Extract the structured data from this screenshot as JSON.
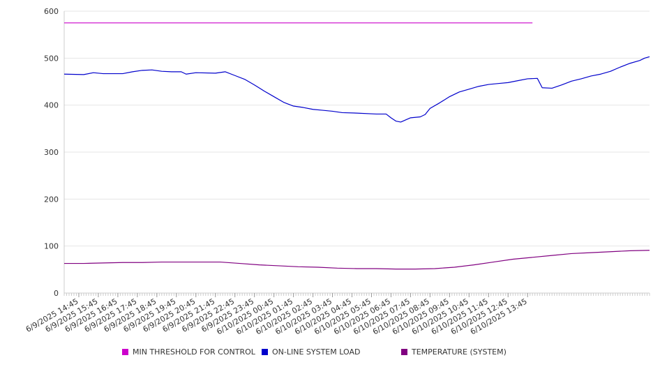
{
  "chart_data": {
    "type": "line",
    "title": "",
    "xlabel": "",
    "ylabel": "",
    "ylim": [
      0,
      600
    ],
    "yticks": [
      0,
      100,
      200,
      300,
      400,
      500,
      600
    ],
    "grid": true,
    "legend_position": "bottom",
    "x_tick_labels": [
      "6/9/2025 14:45",
      "6/9/2025 15:45",
      "6/9/2025 16:45",
      "6/9/2025 17:45",
      "6/9/2025 18:45",
      "6/9/2025 19:45",
      "6/9/2025 20:45",
      "6/9/2025 21:45",
      "6/9/2025 22:45",
      "6/9/2025 23:45",
      "6/10/2025 00:45",
      "6/10/2025 01:45",
      "6/10/2025 02:45",
      "6/10/2025 03:45",
      "6/10/2025 04:45",
      "6/10/2025 05:45",
      "6/10/2025 06:45",
      "6/10/2025 07:45",
      "6/10/2025 08:45",
      "6/10/2025 09:45",
      "6/10/2025 10:45",
      "6/10/2025 11:45",
      "6/10/2025 12:45",
      "6/10/2025 13:45"
    ],
    "series": [
      {
        "name": "MIN THRESHOLD FOR CONTROL",
        "color": "#cc00cc",
        "points": [
          [
            "6/9/2025 14:00",
            575
          ],
          [
            "6/10/2025 14:00",
            575
          ]
        ]
      },
      {
        "name": "ON-LINE SYSTEM LOAD",
        "color": "#0000cc",
        "points": [
          [
            "6/9/2025 14:00",
            466
          ],
          [
            "6/9/2025 15:00",
            465
          ],
          [
            "6/9/2025 15:30",
            469
          ],
          [
            "6/9/2025 16:00",
            467
          ],
          [
            "6/9/2025 17:00",
            467
          ],
          [
            "6/9/2025 17:30",
            471
          ],
          [
            "6/9/2025 18:00",
            474
          ],
          [
            "6/9/2025 18:30",
            475
          ],
          [
            "6/9/2025 19:00",
            472
          ],
          [
            "6/9/2025 19:30",
            471
          ],
          [
            "6/9/2025 20:00",
            471
          ],
          [
            "6/9/2025 20:15",
            466
          ],
          [
            "6/9/2025 20:45",
            469
          ],
          [
            "6/9/2025 21:45",
            468
          ],
          [
            "6/9/2025 22:15",
            471
          ],
          [
            "6/9/2025 22:45",
            463
          ],
          [
            "6/9/2025 23:15",
            455
          ],
          [
            "6/9/2025 23:45",
            443
          ],
          [
            "6/10/2025 00:15",
            430
          ],
          [
            "6/10/2025 00:45",
            418
          ],
          [
            "6/10/2025 01:15",
            406
          ],
          [
            "6/10/2025 01:45",
            398
          ],
          [
            "6/10/2025 02:15",
            395
          ],
          [
            "6/10/2025 02:45",
            391
          ],
          [
            "6/10/2025 03:15",
            389
          ],
          [
            "6/10/2025 03:45",
            387
          ],
          [
            "6/10/2025 04:15",
            384
          ],
          [
            "6/10/2025 05:00",
            383
          ],
          [
            "6/10/2025 06:00",
            381
          ],
          [
            "6/10/2025 06:30",
            381
          ],
          [
            "6/10/2025 06:45",
            373
          ],
          [
            "6/10/2025 07:00",
            366
          ],
          [
            "6/10/2025 07:15",
            364
          ],
          [
            "6/10/2025 07:45",
            373
          ],
          [
            "6/10/2025 08:15",
            375
          ],
          [
            "6/10/2025 08:30",
            380
          ],
          [
            "6/10/2025 08:45",
            393
          ],
          [
            "6/10/2025 09:15",
            405
          ],
          [
            "6/10/2025 09:45",
            418
          ],
          [
            "6/10/2025 10:15",
            428
          ],
          [
            "6/10/2025 10:45",
            434
          ],
          [
            "6/10/2025 11:15",
            440
          ],
          [
            "6/10/2025 11:45",
            444
          ],
          [
            "6/10/2025 12:15",
            446
          ],
          [
            "6/10/2025 12:45",
            448
          ],
          [
            "6/10/2025 13:15",
            452
          ],
          [
            "6/10/2025 13:45",
            456
          ],
          [
            "6/10/2025 14:15",
            457
          ],
          [
            "6/10/2025 14:30",
            437
          ],
          [
            "6/10/2025 15:00",
            436
          ],
          [
            "6/10/2025 15:30",
            443
          ],
          [
            "6/10/2025 16:00",
            451
          ],
          [
            "6/10/2025 16:30",
            456
          ],
          [
            "6/10/2025 17:00",
            462
          ],
          [
            "6/10/2025 17:30",
            466
          ],
          [
            "6/10/2025 18:00",
            472
          ],
          [
            "6/10/2025 18:30",
            481
          ],
          [
            "6/10/2025 19:00",
            489
          ],
          [
            "6/10/2025 19:30",
            495
          ],
          [
            "6/10/2025 19:45",
            500
          ],
          [
            "6/10/2025 20:00",
            503
          ]
        ]
      },
      {
        "name": "TEMPERATURE (SYSTEM)",
        "color": "#800080",
        "points": [
          [
            "6/9/2025 14:00",
            63
          ],
          [
            "6/9/2025 15:00",
            63
          ],
          [
            "6/9/2025 16:00",
            64
          ],
          [
            "6/9/2025 17:00",
            65
          ],
          [
            "6/9/2025 18:00",
            65
          ],
          [
            "6/9/2025 19:00",
            66
          ],
          [
            "6/9/2025 20:00",
            66
          ],
          [
            "6/9/2025 21:00",
            66
          ],
          [
            "6/9/2025 22:00",
            66
          ],
          [
            "6/9/2025 23:00",
            63
          ],
          [
            "6/10/2025 00:00",
            60
          ],
          [
            "6/10/2025 01:00",
            58
          ],
          [
            "6/10/2025 02:00",
            56
          ],
          [
            "6/10/2025 03:00",
            55
          ],
          [
            "6/10/2025 04:00",
            53
          ],
          [
            "6/10/2025 05:00",
            52
          ],
          [
            "6/10/2025 06:00",
            52
          ],
          [
            "6/10/2025 07:00",
            51
          ],
          [
            "6/10/2025 08:00",
            51
          ],
          [
            "6/10/2025 09:00",
            52
          ],
          [
            "6/10/2025 10:00",
            55
          ],
          [
            "6/10/2025 11:00",
            60
          ],
          [
            "6/10/2025 12:00",
            66
          ],
          [
            "6/10/2025 13:00",
            72
          ],
          [
            "6/10/2025 14:00",
            76
          ],
          [
            "6/10/2025 15:00",
            80
          ],
          [
            "6/10/2025 16:00",
            84
          ],
          [
            "6/10/2025 17:00",
            86
          ],
          [
            "6/10/2025 18:00",
            88
          ],
          [
            "6/10/2025 19:00",
            90
          ],
          [
            "6/10/2025 20:00",
            91
          ]
        ]
      }
    ]
  },
  "legend": [
    {
      "label": "MIN THRESHOLD FOR CONTROL",
      "color": "#cc00cc"
    },
    {
      "label": "ON-LINE SYSTEM LOAD",
      "color": "#0000cc"
    },
    {
      "label": "TEMPERATURE (SYSTEM)",
      "color": "#800080"
    }
  ],
  "colors": {
    "grid": "#e6e6e6",
    "axis": "#cccccc",
    "text": "#333333",
    "background": "#ffffff"
  }
}
